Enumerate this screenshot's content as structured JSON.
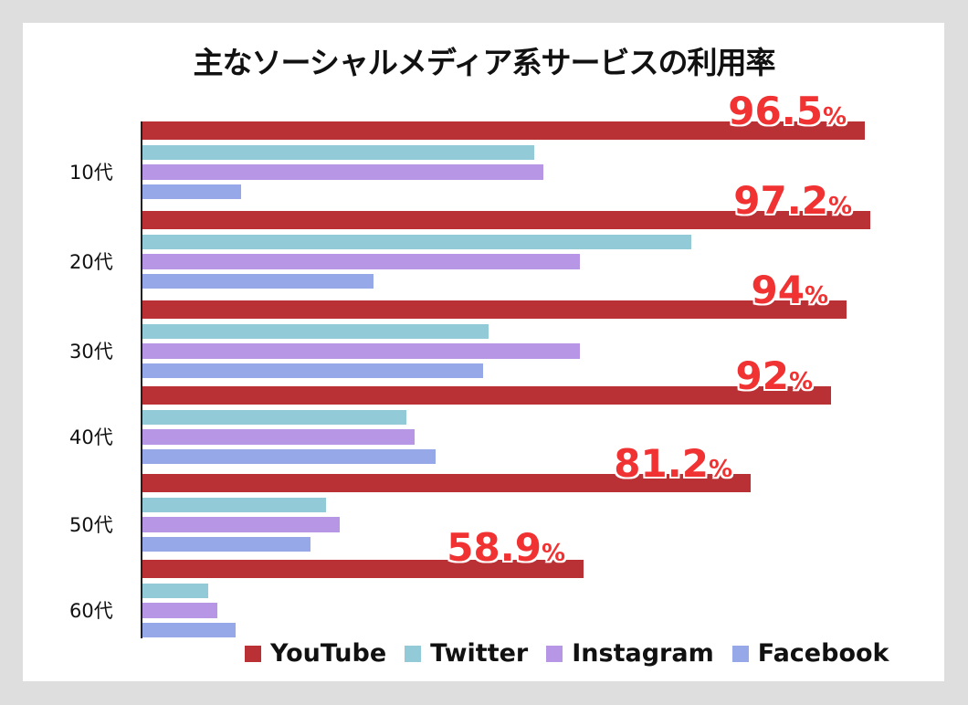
{
  "chart_data": {
    "type": "bar",
    "orientation": "horizontal",
    "title": "主なソーシャルメディア系サービスの利用率",
    "xlabel": "",
    "ylabel": "",
    "categories": [
      "10代",
      "20代",
      "30代",
      "40代",
      "50代",
      "60代"
    ],
    "series": [
      {
        "name": "YouTube",
        "color": "#b93035",
        "values": [
          96.5,
          97.2,
          94,
          92,
          81.2,
          58.9
        ],
        "labels": [
          "96.5",
          "97.2",
          "94",
          "92",
          "81.2",
          "58.9"
        ]
      },
      {
        "name": "Twitter",
        "color": "#92cad7",
        "values": [
          52.3,
          73.3,
          46.2,
          35.2,
          24.5,
          8.8
        ]
      },
      {
        "name": "Instagram",
        "color": "#b896e6",
        "values": [
          53.5,
          58.4,
          58.4,
          36.4,
          26.4,
          10.0
        ]
      },
      {
        "name": "Facebook",
        "color": "#97a8e8",
        "values": [
          13.2,
          30.8,
          45.5,
          39.1,
          22.4,
          12.5
        ]
      }
    ],
    "legend_position": "bottom-right",
    "grid": false,
    "value_label_suffix": "%"
  },
  "legend": [
    {
      "label": "YouTube",
      "color": "#b93035"
    },
    {
      "label": "Twitter",
      "color": "#92cad7"
    },
    {
      "label": "Instagram",
      "color": "#b896e6"
    },
    {
      "label": "Facebook",
      "color": "#97a8e8"
    }
  ],
  "groups": [
    {
      "label": "10代",
      "yt_label": "96.5"
    },
    {
      "label": "20代",
      "yt_label": "97.2"
    },
    {
      "label": "30代",
      "yt_label": "94"
    },
    {
      "label": "40代",
      "yt_label": "92"
    },
    {
      "label": "50代",
      "yt_label": "81.2"
    },
    {
      "label": "60代",
      "yt_label": "58.9"
    }
  ],
  "pct_symbol": "%"
}
